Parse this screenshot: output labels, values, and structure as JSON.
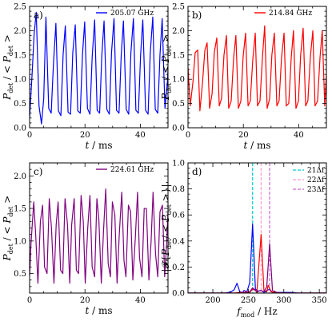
{
  "chart_data": [
    {
      "type": "line",
      "panel_label": "a)",
      "xlabel": "t / ms",
      "ylabel": "P_det / < P_det >",
      "xlim": [
        0,
        50
      ],
      "ylim": [
        0,
        2.5
      ],
      "xticks": [
        0,
        20,
        40
      ],
      "yticks": [
        0.0,
        0.5,
        1.0,
        1.5,
        2.0,
        2.5
      ],
      "legend_position": "top-right",
      "series": [
        {
          "name": "205.07 GHz",
          "color": "#0000ff",
          "x": [
            0,
            0.9,
            1.6,
            2.4,
            3.4,
            4.3,
            5.1,
            5.9,
            6.9,
            7.8,
            8.6,
            9.5,
            10.4,
            11.3,
            12.1,
            12.9,
            13.9,
            14.8,
            15.6,
            16.5,
            17.4,
            18.3,
            19.1,
            19.9,
            20.9,
            21.8,
            22.6,
            23.5,
            24.4,
            25.3,
            26.1,
            26.9,
            27.9,
            28.8,
            29.6,
            30.5,
            31.4,
            32.3,
            33.1,
            33.9,
            34.9,
            35.8,
            36.6,
            37.5,
            38.4,
            39.3,
            40.1,
            40.9,
            41.9,
            42.8,
            43.6,
            44.5,
            45.4,
            46.3,
            47.1,
            47.9,
            48.9,
            49.8,
            50
          ],
          "y": [
            0.2,
            1.1,
            1.9,
            2.38,
            0.45,
            0.08,
            0.6,
            2.28,
            0.4,
            0.3,
            1.3,
            2.15,
            0.35,
            0.25,
            1.5,
            2.1,
            0.32,
            0.28,
            1.55,
            2.12,
            0.35,
            0.3,
            1.5,
            2.18,
            0.4,
            0.28,
            1.45,
            2.22,
            0.36,
            0.3,
            1.5,
            2.2,
            0.38,
            0.28,
            1.55,
            2.25,
            0.36,
            0.3,
            1.5,
            2.2,
            0.38,
            0.28,
            1.55,
            2.25,
            0.36,
            0.3,
            1.5,
            2.22,
            0.36,
            0.28,
            1.55,
            2.28,
            0.38,
            0.3,
            1.5,
            2.25,
            0.4,
            0.95,
            1.2
          ]
        }
      ]
    },
    {
      "type": "line",
      "panel_label": "b)",
      "xlabel": "t / ms",
      "ylabel": "P_det / < P_det >",
      "xlim": [
        0,
        50
      ],
      "ylim": [
        0,
        2.5
      ],
      "xticks": [
        0,
        20,
        40
      ],
      "yticks": [
        0.0,
        0.5,
        1.0,
        1.5,
        2.0,
        2.5
      ],
      "legend_position": "top-right",
      "series": [
        {
          "name": "214.84 GHz",
          "color": "#ff0000",
          "x": [
            0,
            0.8,
            1.8,
            2.6,
            3.5,
            4.3,
            5.2,
            6.1,
            6.9,
            7.8,
            8.7,
            9.5,
            10.4,
            11.3,
            12.1,
            13.0,
            13.9,
            14.7,
            15.6,
            16.5,
            17.3,
            18.2,
            19.1,
            19.9,
            20.8,
            21.7,
            22.5,
            23.4,
            24.3,
            25.1,
            26.0,
            26.9,
            27.7,
            28.6,
            29.5,
            30.3,
            31.2,
            32.1,
            32.9,
            33.8,
            34.7,
            35.5,
            36.4,
            37.3,
            38.1,
            39.0,
            39.9,
            40.7,
            41.6,
            42.5,
            43.3,
            44.2,
            45.1,
            45.9,
            46.8,
            47.7,
            48.5,
            49.4,
            50
          ],
          "y": [
            1.25,
            0.45,
            0.95,
            1.55,
            1.6,
            0.35,
            0.9,
            1.6,
            1.75,
            0.4,
            0.7,
            1.55,
            1.85,
            0.45,
            0.6,
            1.5,
            1.9,
            0.4,
            0.55,
            1.45,
            1.9,
            0.4,
            0.55,
            1.45,
            1.95,
            0.45,
            0.55,
            1.4,
            1.95,
            0.45,
            0.55,
            1.45,
            2.1,
            0.4,
            0.6,
            1.5,
            1.95,
            0.45,
            0.55,
            1.45,
            1.95,
            0.45,
            0.5,
            1.45,
            2.0,
            0.4,
            0.55,
            1.5,
            2.05,
            0.45,
            0.55,
            1.45,
            2.0,
            0.45,
            0.55,
            1.45,
            2.0,
            0.45,
            1.1
          ]
        }
      ]
    },
    {
      "type": "line",
      "panel_label": "c)",
      "xlabel": "t / ms",
      "ylabel": "P_det / < P_det >",
      "xlim": [
        0,
        50
      ],
      "ylim": [
        0.2,
        2.2
      ],
      "xticks": [
        0,
        20,
        40
      ],
      "yticks": [
        0.5,
        1.0,
        1.5,
        2.0
      ],
      "legend_position": "top-right",
      "series": [
        {
          "name": "224.61 GHz",
          "color": "#800080",
          "x": [
            0,
            0.5,
            1.5,
            2.2,
            3.0,
            3.9,
            4.7,
            5.4,
            6.3,
            7.1,
            7.9,
            8.8,
            9.6,
            10.3,
            11.2,
            12.0,
            12.8,
            13.7,
            14.5,
            15.2,
            16.1,
            16.9,
            17.7,
            18.6,
            19.4,
            20.1,
            21.0,
            21.8,
            22.6,
            23.5,
            24.3,
            25.0,
            25.9,
            26.7,
            27.5,
            28.4,
            29.2,
            29.9,
            30.8,
            31.6,
            32.4,
            33.3,
            34.1,
            34.8,
            35.7,
            36.5,
            37.3,
            38.2,
            39.0,
            39.7,
            40.6,
            41.4,
            42.2,
            43.1,
            43.9,
            44.6,
            45.5,
            46.3,
            47.1,
            48.0,
            48.8,
            49.5,
            50
          ],
          "y": [
            0.45,
            0.95,
            1.6,
            1.1,
            0.35,
            1.3,
            1.55,
            0.6,
            0.5,
            1.65,
            1.2,
            0.35,
            1.25,
            1.6,
            0.55,
            0.5,
            1.65,
            1.25,
            0.35,
            1.25,
            1.65,
            0.55,
            0.5,
            1.7,
            1.3,
            0.35,
            1.2,
            1.7,
            0.6,
            0.45,
            1.65,
            1.35,
            0.35,
            1.15,
            1.8,
            0.65,
            0.45,
            1.6,
            1.4,
            0.35,
            1.1,
            1.75,
            0.7,
            0.45,
            1.55,
            1.45,
            0.4,
            1.05,
            1.75,
            0.75,
            0.45,
            1.5,
            1.5,
            0.4,
            1.0,
            1.75,
            0.8,
            0.45,
            1.45,
            1.55,
            0.45,
            0.95,
            1.45
          ]
        }
      ]
    },
    {
      "type": "line",
      "panel_label": "d)",
      "xlabel": "f_mod / Hz",
      "ylabel": "|F{P_det/ < P_det >}|",
      "xlim": [
        165,
        360
      ],
      "ylim": [
        0,
        1.0
      ],
      "xticks": [
        200,
        250,
        300,
        350
      ],
      "yticks": [
        0.0,
        0.2,
        0.4,
        0.6,
        0.8,
        1.0
      ],
      "legend_position": "top-right",
      "series": [
        {
          "name": "",
          "color": "#0000ff",
          "x": [
            165,
            218,
            222,
            226,
            230,
            234,
            238,
            242,
            244,
            248,
            252,
            256,
            260,
            264,
            268,
            272,
            276,
            280,
            284,
            290,
            300,
            310,
            320,
            360
          ],
          "y": [
            0.0,
            0.0,
            0.005,
            0.01,
            0.025,
            0.075,
            0.01,
            0.005,
            0.02,
            0.01,
            0.08,
            0.53,
            0.03,
            0.015,
            0.02,
            0.005,
            0.02,
            0.03,
            0.005,
            0.005,
            0.005,
            0.005,
            0.0,
            0.0
          ]
        },
        {
          "name": "",
          "color": "#ff0000",
          "x": [
            165,
            230,
            238,
            244,
            248,
            252,
            256,
            260,
            262,
            266,
            268,
            272,
            276,
            278,
            282,
            288,
            300,
            360
          ],
          "y": [
            0.0,
            0.0,
            0.005,
            0.005,
            0.01,
            0.005,
            0.03,
            0.02,
            0.005,
            0.3,
            0.45,
            0.02,
            0.01,
            0.06,
            0.01,
            0.005,
            0.0,
            0.0
          ]
        },
        {
          "name": "",
          "color": "#800080",
          "x": [
            165,
            240,
            248,
            252,
            256,
            262,
            268,
            272,
            276,
            280,
            284,
            290,
            300,
            360
          ],
          "y": [
            0.0,
            0.0,
            0.005,
            0.01,
            0.04,
            0.01,
            0.02,
            0.01,
            0.05,
            0.38,
            0.02,
            0.005,
            0.0,
            0.0
          ]
        }
      ],
      "reference_lines": [
        {
          "name": "21Δf",
          "x": 256,
          "color": "#00cccc",
          "style": "dashed"
        },
        {
          "name": "22Δf",
          "x": 268,
          "color": "#ff99cc",
          "style": "dashed"
        },
        {
          "name": "23Δf",
          "x": 280,
          "color": "#cc66cc",
          "style": "dashed"
        }
      ]
    }
  ]
}
